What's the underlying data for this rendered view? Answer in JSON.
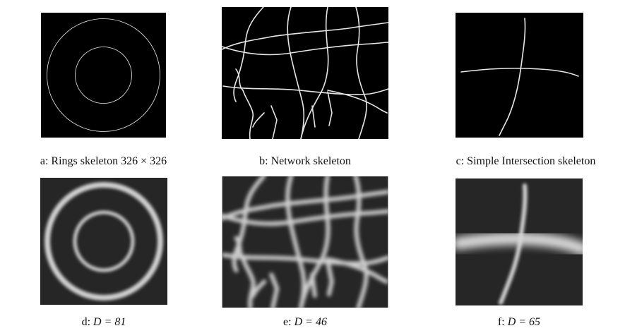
{
  "figure": {
    "panels": [
      {
        "id": "a",
        "caption_prefix": "a:",
        "caption_text": "Rings skeleton",
        "caption_math": "326 × 326"
      },
      {
        "id": "b",
        "caption_prefix": "b:",
        "caption_text": "Network skeleton",
        "caption_math": ""
      },
      {
        "id": "c",
        "caption_prefix": "c:",
        "caption_text": "Simple Intersection skeleton",
        "caption_math": ""
      },
      {
        "id": "d",
        "caption_prefix": "d:",
        "caption_text": "",
        "caption_math": "D = 81"
      },
      {
        "id": "e",
        "caption_prefix": "e:",
        "caption_text": "",
        "caption_math": "D = 46"
      },
      {
        "id": "f",
        "caption_prefix": "f:",
        "caption_text": "",
        "caption_math": "D = 65"
      }
    ]
  }
}
